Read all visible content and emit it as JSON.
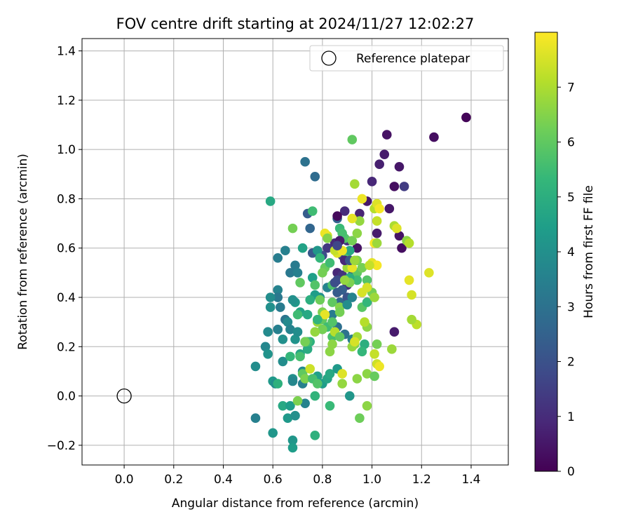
{
  "chart_data": {
    "type": "scatter",
    "title": "FOV centre drift starting at 2024/11/27 12:02:27",
    "xlabel": "Angular distance from reference (arcmin)",
    "ylabel": "Rotation from reference (arcmin)",
    "xlim": [
      -0.17,
      1.55
    ],
    "ylim": [
      -0.28,
      1.45
    ],
    "xticks": [
      0.0,
      0.2,
      0.4,
      0.6,
      0.8,
      1.0,
      1.2,
      1.4
    ],
    "xtick_labels": [
      "0.0",
      "0.2",
      "0.4",
      "0.6",
      "0.8",
      "1.0",
      "1.2",
      "1.4"
    ],
    "yticks": [
      -0.2,
      0.0,
      0.2,
      0.4,
      0.6,
      0.8,
      1.0,
      1.2,
      1.4
    ],
    "ytick_labels": [
      "−0.2",
      "0.0",
      "0.2",
      "0.4",
      "0.6",
      "0.8",
      "1.0",
      "1.2",
      "1.4"
    ],
    "grid": true,
    "legend": {
      "position": "upper right",
      "entries": [
        {
          "label": "Reference platepar",
          "marker": "hollow-circle"
        }
      ]
    },
    "reference_point": {
      "x": 0.0,
      "y": 0.0
    },
    "colorbar": {
      "label": "Hours from first FF file",
      "colormap": "viridis",
      "range": [
        0,
        8
      ],
      "ticks": [
        0,
        1,
        2,
        3,
        4,
        5,
        6,
        7
      ],
      "tick_labels": [
        "0",
        "1",
        "2",
        "3",
        "4",
        "5",
        "6",
        "7"
      ]
    },
    "points": [
      [
        1.38,
        1.13,
        0.1
      ],
      [
        1.25,
        1.05,
        0.3
      ],
      [
        1.06,
        1.06,
        0.4
      ],
      [
        1.05,
        0.98,
        0.6
      ],
      [
        1.03,
        0.94,
        0.7
      ],
      [
        1.11,
        0.93,
        0.5
      ],
      [
        1.0,
        0.87,
        0.9
      ],
      [
        1.09,
        0.85,
        0.3
      ],
      [
        1.13,
        0.85,
        1.4
      ],
      [
        1.07,
        0.76,
        0.5
      ],
      [
        1.11,
        0.65,
        0.4
      ],
      [
        1.12,
        0.6,
        0.3
      ],
      [
        1.09,
        0.26,
        0.6
      ],
      [
        0.98,
        0.79,
        0.5
      ],
      [
        0.95,
        0.74,
        0.8
      ],
      [
        0.89,
        0.75,
        1.0
      ],
      [
        1.02,
        0.66,
        0.6
      ],
      [
        0.94,
        0.6,
        0.4
      ],
      [
        0.85,
        0.62,
        1.0
      ],
      [
        0.9,
        0.63,
        1.2
      ],
      [
        0.87,
        0.63,
        1.5
      ],
      [
        0.88,
        0.57,
        1.7
      ],
      [
        0.82,
        0.6,
        1.3
      ],
      [
        0.8,
        0.57,
        1.9
      ],
      [
        0.76,
        0.58,
        2.2
      ],
      [
        0.74,
        0.74,
        2.3
      ],
      [
        0.73,
        0.95,
        3.0
      ],
      [
        0.77,
        0.89,
        2.8
      ],
      [
        0.86,
        0.72,
        2.5
      ],
      [
        0.75,
        0.68,
        2.6
      ],
      [
        0.86,
        0.5,
        0.9
      ],
      [
        0.88,
        0.49,
        1.2
      ],
      [
        0.86,
        0.47,
        1.8
      ],
      [
        0.9,
        0.45,
        1.1
      ],
      [
        0.92,
        0.49,
        2.1
      ],
      [
        0.88,
        0.43,
        2.4
      ],
      [
        0.87,
        0.38,
        2.7
      ],
      [
        0.9,
        0.4,
        2.0
      ],
      [
        0.84,
        0.33,
        3.3
      ],
      [
        0.86,
        0.28,
        2.9
      ],
      [
        0.89,
        0.25,
        3.0
      ],
      [
        0.92,
        0.23,
        3.4
      ],
      [
        0.82,
        0.44,
        3.6
      ],
      [
        0.79,
        0.4,
        4.0
      ],
      [
        0.77,
        0.41,
        4.4
      ],
      [
        0.72,
        0.6,
        4.6
      ],
      [
        0.78,
        0.59,
        4.2
      ],
      [
        0.76,
        0.48,
        4.5
      ],
      [
        0.67,
        0.5,
        3.2
      ],
      [
        0.69,
        0.53,
        3.3
      ],
      [
        0.7,
        0.5,
        3.5
      ],
      [
        0.65,
        0.59,
        3.5
      ],
      [
        0.62,
        0.56,
        3.4
      ],
      [
        0.59,
        0.79,
        4.8
      ],
      [
        0.62,
        0.43,
        3.6
      ],
      [
        0.62,
        0.4,
        3.2
      ],
      [
        0.59,
        0.4,
        3.9
      ],
      [
        0.59,
        0.36,
        4.0
      ],
      [
        0.63,
        0.36,
        3.3
      ],
      [
        0.65,
        0.31,
        3.1
      ],
      [
        0.66,
        0.3,
        3.8
      ],
      [
        0.62,
        0.27,
        3.5
      ],
      [
        0.58,
        0.26,
        3.8
      ],
      [
        0.57,
        0.2,
        3.7
      ],
      [
        0.58,
        0.17,
        4.1
      ],
      [
        0.53,
        0.12,
        3.9
      ],
      [
        0.53,
        -0.09,
        3.5
      ],
      [
        0.6,
        0.06,
        4.3
      ],
      [
        0.64,
        0.23,
        4.0
      ],
      [
        0.64,
        0.14,
        3.9
      ],
      [
        0.67,
        0.16,
        5.3
      ],
      [
        0.67,
        0.27,
        3.6
      ],
      [
        0.69,
        0.23,
        4.1
      ],
      [
        0.7,
        0.26,
        3.9
      ],
      [
        0.69,
        0.38,
        4.2
      ],
      [
        0.68,
        0.39,
        4.0
      ],
      [
        0.71,
        0.34,
        4.6
      ],
      [
        0.7,
        0.33,
        5.5
      ],
      [
        0.74,
        0.33,
        4.8
      ],
      [
        0.73,
        0.22,
        4.5
      ],
      [
        0.71,
        0.17,
        4.7
      ],
      [
        0.74,
        0.19,
        4.9
      ],
      [
        0.75,
        0.22,
        5.1
      ],
      [
        0.72,
        0.1,
        3.8
      ],
      [
        0.68,
        0.07,
        4.0
      ],
      [
        0.72,
        0.05,
        3.5
      ],
      [
        0.68,
        0.06,
        3.7
      ],
      [
        0.61,
        0.05,
        3.9
      ],
      [
        0.6,
        -0.15,
        4.2
      ],
      [
        0.64,
        -0.04,
        4.8
      ],
      [
        0.67,
        -0.04,
        4.4
      ],
      [
        0.66,
        -0.09,
        4.3
      ],
      [
        0.69,
        -0.08,
        4.0
      ],
      [
        0.68,
        -0.18,
        4.2
      ],
      [
        0.68,
        -0.21,
        4.4
      ],
      [
        0.73,
        -0.03,
        3.6
      ],
      [
        0.77,
        -0.16,
        5.1
      ],
      [
        0.77,
        0.0,
        5.2
      ],
      [
        0.83,
        -0.04,
        5.4
      ],
      [
        0.8,
        0.05,
        4.4
      ],
      [
        0.82,
        0.07,
        4.7
      ],
      [
        0.78,
        0.08,
        4.5
      ],
      [
        0.83,
        0.09,
        4.8
      ],
      [
        0.86,
        0.11,
        4.3
      ],
      [
        0.88,
        0.09,
        7.6
      ],
      [
        0.91,
        0.0,
        4.2
      ],
      [
        0.88,
        0.05,
        6.7
      ],
      [
        0.94,
        0.07,
        6.6
      ],
      [
        0.95,
        -0.09,
        6.2
      ],
      [
        0.98,
        -0.04,
        6.6
      ],
      [
        0.98,
        0.09,
        6.6
      ],
      [
        1.01,
        0.08,
        6.1
      ],
      [
        1.01,
        0.17,
        7.3
      ],
      [
        1.02,
        0.21,
        6.3
      ],
      [
        1.02,
        0.13,
        7.4
      ],
      [
        1.03,
        0.12,
        7.8
      ],
      [
        1.08,
        0.19,
        6.8
      ],
      [
        0.97,
        0.21,
        5.0
      ],
      [
        0.96,
        0.18,
        5.3
      ],
      [
        0.93,
        0.21,
        6.4
      ],
      [
        0.92,
        0.2,
        6.7
      ],
      [
        0.94,
        0.24,
        6.9
      ],
      [
        0.93,
        0.22,
        7.5
      ],
      [
        0.98,
        0.28,
        6.6
      ],
      [
        0.97,
        0.3,
        7.1
      ],
      [
        0.96,
        0.36,
        5.9
      ],
      [
        0.98,
        0.38,
        5.3
      ],
      [
        1.0,
        0.42,
        6.3
      ],
      [
        1.01,
        0.4,
        6.8
      ],
      [
        0.98,
        0.47,
        5.8
      ],
      [
        0.94,
        0.5,
        6.0
      ],
      [
        0.94,
        0.55,
        6.4
      ],
      [
        0.96,
        0.52,
        6.3
      ],
      [
        0.94,
        0.47,
        5.5
      ],
      [
        0.91,
        0.48,
        5.0
      ],
      [
        0.9,
        0.52,
        6.8
      ],
      [
        0.9,
        0.58,
        5.8
      ],
      [
        0.91,
        0.59,
        4.8
      ],
      [
        0.89,
        0.64,
        5.8
      ],
      [
        0.87,
        0.68,
        5.4
      ],
      [
        0.88,
        0.66,
        5.6
      ],
      [
        0.92,
        0.63,
        6.3
      ],
      [
        0.94,
        0.66,
        6.6
      ],
      [
        0.95,
        0.71,
        6.7
      ],
      [
        0.92,
        0.72,
        7.7
      ],
      [
        0.93,
        0.86,
        6.9
      ],
      [
        0.92,
        1.04,
        6.0
      ],
      [
        0.96,
        0.8,
        7.8
      ],
      [
        1.01,
        0.76,
        7.1
      ],
      [
        1.02,
        0.78,
        7.6
      ],
      [
        1.03,
        0.76,
        7.9
      ],
      [
        1.02,
        0.71,
        7.3
      ],
      [
        1.09,
        0.69,
        7.0
      ],
      [
        1.1,
        0.68,
        7.6
      ],
      [
        1.14,
        0.63,
        6.6
      ],
      [
        1.15,
        0.62,
        7.1
      ],
      [
        1.01,
        0.62,
        7.9
      ],
      [
        1.02,
        0.62,
        6.8
      ],
      [
        1.0,
        0.54,
        7.7
      ],
      [
        1.02,
        0.53,
        7.9
      ],
      [
        0.99,
        0.53,
        7.3
      ],
      [
        0.98,
        0.44,
        7.5
      ],
      [
        0.96,
        0.42,
        7.5
      ],
      [
        0.92,
        0.52,
        7.7
      ],
      [
        0.91,
        0.46,
        6.4
      ],
      [
        0.89,
        0.47,
        6.7
      ],
      [
        0.84,
        0.45,
        5.7
      ],
      [
        0.81,
        0.52,
        6.1
      ],
      [
        0.79,
        0.56,
        5.3
      ],
      [
        0.8,
        0.5,
        6.3
      ],
      [
        0.83,
        0.54,
        5.5
      ],
      [
        0.86,
        0.58,
        7.6
      ],
      [
        0.85,
        0.59,
        7.3
      ],
      [
        0.88,
        0.59,
        7.8
      ],
      [
        0.82,
        0.65,
        7.4
      ],
      [
        0.81,
        0.66,
        7.8
      ],
      [
        0.82,
        0.64,
        6.5
      ],
      [
        0.76,
        0.75,
        5.5
      ],
      [
        0.68,
        0.68,
        6.3
      ],
      [
        0.77,
        0.45,
        5.8
      ],
      [
        0.71,
        0.46,
        6.0
      ],
      [
        0.79,
        0.39,
        6.2
      ],
      [
        0.75,
        0.39,
        5.0
      ],
      [
        0.8,
        0.34,
        6.4
      ],
      [
        0.78,
        0.3,
        6.8
      ],
      [
        0.8,
        0.31,
        6.0
      ],
      [
        0.82,
        0.28,
        5.5
      ],
      [
        0.84,
        0.3,
        5.8
      ],
      [
        0.84,
        0.38,
        6.0
      ],
      [
        0.87,
        0.36,
        6.5
      ],
      [
        0.87,
        0.34,
        6.3
      ],
      [
        0.84,
        0.24,
        5.6
      ],
      [
        0.83,
        0.18,
        6.6
      ],
      [
        0.85,
        0.26,
        7.1
      ],
      [
        0.87,
        0.24,
        6.0
      ],
      [
        0.84,
        0.21,
        6.6
      ],
      [
        0.8,
        0.27,
        6.3
      ],
      [
        0.77,
        0.26,
        6.7
      ],
      [
        0.81,
        0.33,
        7.7
      ],
      [
        0.78,
        0.31,
        5.2
      ],
      [
        0.74,
        0.22,
        5.5
      ],
      [
        0.73,
        0.22,
        6.3
      ],
      [
        0.71,
        0.16,
        5.6
      ],
      [
        0.72,
        0.09,
        6.0
      ],
      [
        0.75,
        0.11,
        7.4
      ],
      [
        0.73,
        0.07,
        6.4
      ],
      [
        0.76,
        0.07,
        5.6
      ],
      [
        0.78,
        0.05,
        5.8
      ],
      [
        0.7,
        -0.02,
        6.4
      ],
      [
        0.62,
        0.05,
        5.1
      ],
      [
        1.23,
        0.5,
        7.6
      ],
      [
        1.18,
        0.29,
        7.2
      ],
      [
        1.16,
        0.31,
        6.9
      ],
      [
        1.16,
        0.41,
        7.5
      ],
      [
        1.15,
        0.47,
        7.7
      ],
      [
        0.86,
        0.73,
        0.2
      ],
      [
        0.87,
        0.63,
        0.6
      ],
      [
        0.86,
        0.61,
        1.7
      ],
      [
        0.89,
        0.55,
        0.9
      ],
      [
        0.91,
        0.55,
        2.1
      ],
      [
        0.93,
        0.55,
        6.8
      ],
      [
        0.92,
        0.4,
        3.6
      ],
      [
        0.9,
        0.37,
        3.9
      ],
      [
        0.86,
        0.42,
        2.3
      ],
      [
        0.85,
        0.46,
        1.9
      ]
    ]
  }
}
